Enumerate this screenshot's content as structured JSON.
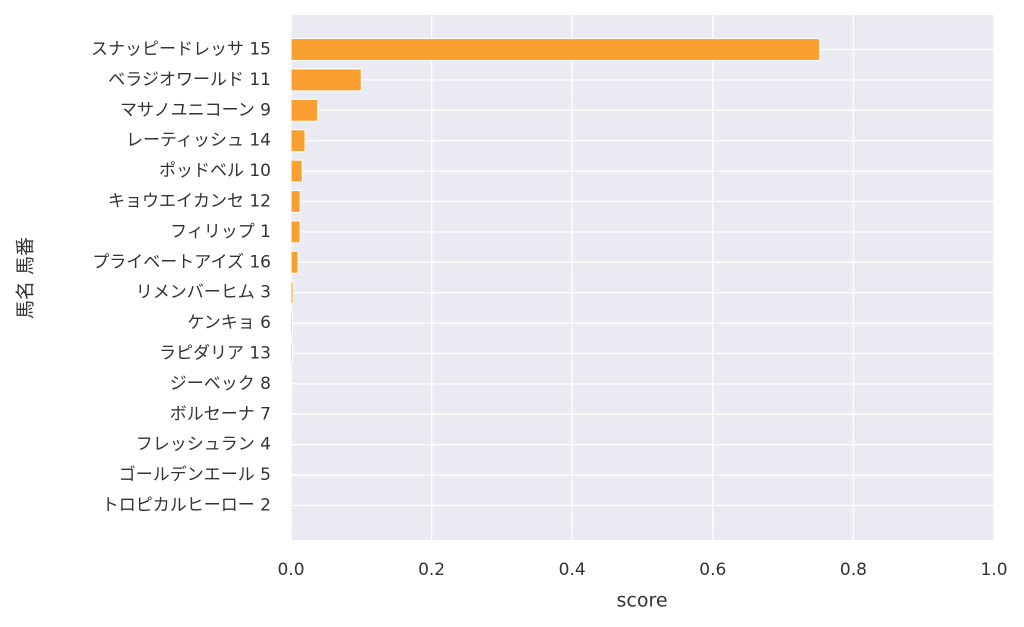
{
  "chart_data": {
    "type": "barh",
    "xlabel": "score",
    "ylabel": "馬名 馬番",
    "categories": [
      "スナッピードレッサ 15",
      "ベラジオワールド 11",
      "マサノユニコーン 9",
      "レーティッシュ 14",
      "ポッドベル 10",
      "キョウエイカンセ 12",
      "フィリップ 1",
      "プライベートアイズ 16",
      "リメンバーヒム 3",
      "ケンキョ 6",
      "ラピダリア 13",
      "ジーベック 8",
      "ボルセーナ 7",
      "フレッシュラン 4",
      "ゴールデンエール 5",
      "トロピカルヒーロー 2"
    ],
    "values": [
      0.752,
      0.1,
      0.038,
      0.02,
      0.016,
      0.013,
      0.013,
      0.01,
      0.003,
      0.002,
      0.002,
      0.001,
      0.0005,
      0.0003,
      0.0002,
      0.0001
    ],
    "color": "#f9a030",
    "xlim": [
      0,
      1
    ],
    "xticks": [
      {
        "value": 0,
        "label": "0.0"
      },
      0.2,
      0.4,
      0.6,
      0.8,
      {
        "value": 1,
        "label": "1.0"
      }
    ],
    "grid": true
  }
}
